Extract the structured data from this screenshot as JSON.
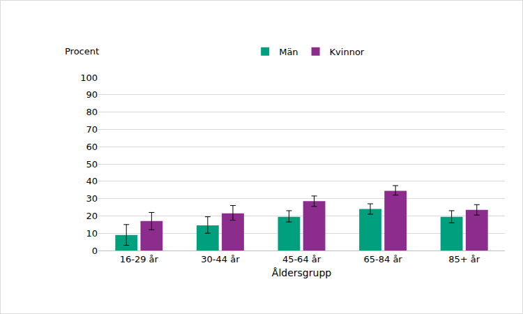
{
  "chart_data": {
    "type": "bar",
    "x_label": "Åldersgrupp",
    "y_label": "Procent",
    "categories": [
      "16-29 år",
      "30-44 år",
      "45-64 år",
      "65-84 år",
      "85+ år"
    ],
    "series": [
      {
        "name": "Män",
        "color": "#00a07f",
        "values": [
          9,
          14.5,
          19.5,
          24,
          19.5
        ],
        "error_plus": [
          6,
          5,
          3.5,
          3,
          3.5
        ],
        "error_minus": [
          6,
          4.5,
          3,
          3,
          3.5
        ]
      },
      {
        "name": "Kvinnor",
        "color": "#8c2d8e",
        "values": [
          17,
          21.5,
          28.5,
          34.5,
          23.5
        ],
        "error_plus": [
          5,
          4.5,
          3,
          3,
          3
        ],
        "error_minus": [
          5,
          4,
          3,
          2.5,
          3
        ]
      }
    ],
    "ylim": [
      0,
      100
    ],
    "yticks": [
      0,
      10,
      20,
      30,
      40,
      50,
      60,
      70,
      80,
      90,
      100
    ],
    "grid": true,
    "legend": "top"
  }
}
